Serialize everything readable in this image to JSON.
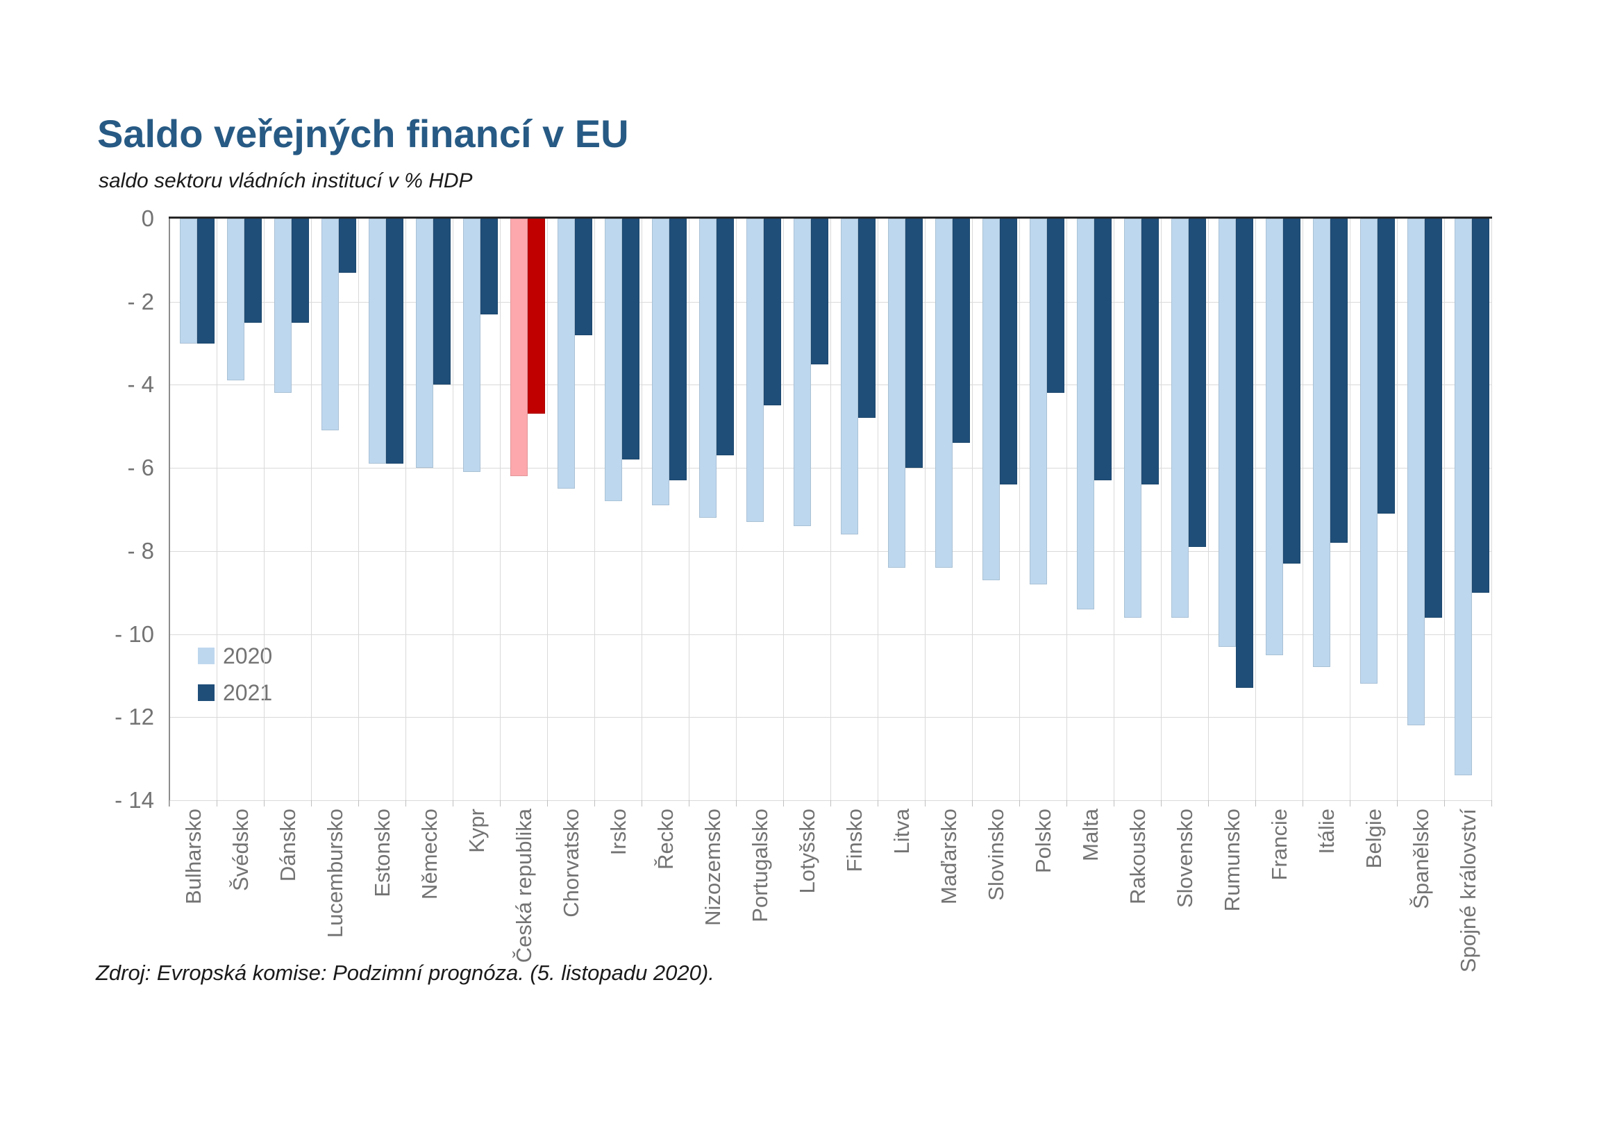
{
  "title": "Saldo veřejných financí v EU",
  "subtitle": "saldo sektoru vládních institucí v % HDP",
  "source": "Zdroj: Evropská komise: Podzimní prognóza. (5. listopadu 2020).",
  "colors": {
    "title": "#275a84",
    "series_2020": "#bdd7ee",
    "series_2021": "#1f4e79",
    "highlight_2020": "#fca8ac",
    "highlight_2021": "#c00000",
    "grid": "#d9d9d9",
    "zero_line": "#262626",
    "axis_line": "#8c8c8c",
    "axis_text": "#737373"
  },
  "chart_data": {
    "type": "bar",
    "title": "Saldo veřejných financí v EU",
    "subtitle": "saldo sektoru vládních institucí v % HDP",
    "xlabel": "",
    "ylabel": "saldo sektoru vládních institucí v % HDP",
    "ylim": [
      -14,
      0
    ],
    "ytick_labels": [
      "0",
      "- 2",
      "- 4",
      "- 6",
      "- 8",
      "- 10",
      "- 12",
      "- 14"
    ],
    "grid": "on",
    "legend_position": "inside-lower-left",
    "categories": [
      "Bulharsko",
      "Švédsko",
      "Dánsko",
      "Lucembursko",
      "Estonsko",
      "Německo",
      "Kypr",
      "Česká republika",
      "Chorvatsko",
      "Irsko",
      "Řecko",
      "Nizozemsko",
      "Portugalsko",
      "Lotyšsko",
      "Finsko",
      "Litva",
      "Maďarsko",
      "Slovinsko",
      "Polsko",
      "Malta",
      "Rakousko",
      "Slovensko",
      "Rumunsko",
      "Francie",
      "Itálie",
      "Belgie",
      "Španělsko",
      "Spojné království"
    ],
    "series": [
      {
        "name": "2020",
        "values": [
          -3.0,
          -3.9,
          -4.2,
          -5.1,
          -5.9,
          -6.0,
          -6.1,
          -6.2,
          -6.5,
          -6.8,
          -6.9,
          -7.2,
          -7.3,
          -7.4,
          -7.6,
          -8.4,
          -8.4,
          -8.7,
          -8.8,
          -9.4,
          -9.6,
          -9.6,
          -10.3,
          -10.5,
          -10.8,
          -11.2,
          -12.2,
          -13.4
        ]
      },
      {
        "name": "2021",
        "values": [
          -3.0,
          -2.5,
          -2.5,
          -1.3,
          -5.9,
          -4.0,
          -2.3,
          -4.7,
          -2.8,
          -5.8,
          -6.3,
          -5.7,
          -4.5,
          -3.5,
          -4.8,
          -6.0,
          -5.4,
          -6.4,
          -4.2,
          -6.3,
          -6.4,
          -7.9,
          -11.3,
          -8.3,
          -7.8,
          -7.1,
          -9.6,
          -9.0
        ]
      }
    ],
    "highlight_category": "Česká republika"
  }
}
